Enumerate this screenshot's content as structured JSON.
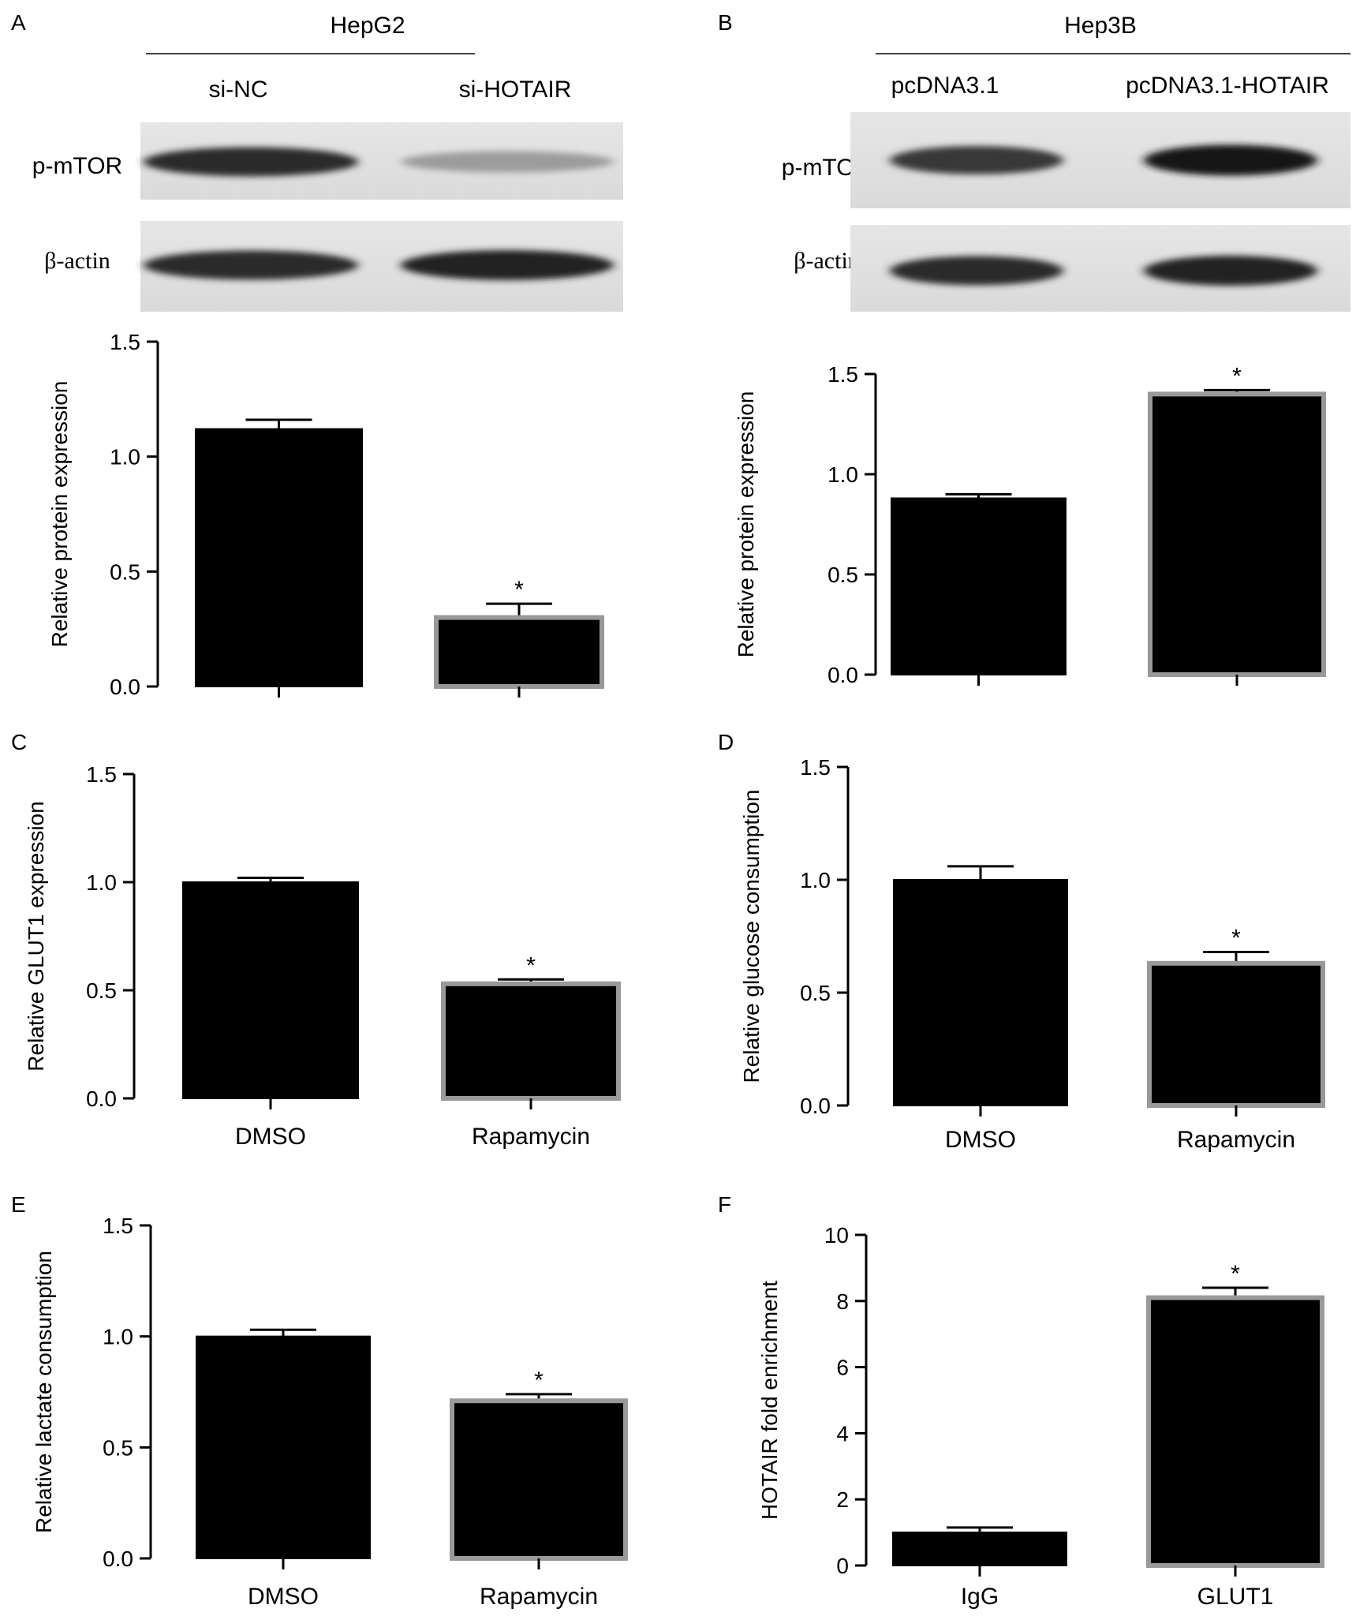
{
  "panels": [
    {
      "letter": "A",
      "blot": {
        "cell_line": "HepG2",
        "lanes": [
          "si-NC",
          "si-HOTAIR"
        ],
        "proteins": [
          "p-mTOR",
          "β-actin"
        ],
        "intensities": {
          "p-mTOR": [
            0.85,
            0.35
          ],
          "β-actin": [
            0.85,
            0.9
          ]
        }
      }
    },
    {
      "letter": "B",
      "blot": {
        "cell_line": "Hep3B",
        "lanes": [
          "pcDNA3.1",
          "pcDNA3.1-HOTAIR"
        ],
        "proteins": [
          "p-mTOR",
          "β-actin"
        ],
        "intensities": {
          "p-mTOR": [
            0.8,
            0.95
          ],
          "β-actin": [
            0.85,
            0.9
          ]
        }
      }
    },
    {
      "letter": "C"
    },
    {
      "letter": "D"
    },
    {
      "letter": "E"
    },
    {
      "letter": "F"
    }
  ],
  "colors": {
    "bar": "#000000",
    "second_bar_border": "#999999",
    "axis": "#000000"
  },
  "chart_data": [
    {
      "panel": "A",
      "type": "bar",
      "categories": [
        "",
        ""
      ],
      "values": [
        1.12,
        0.3
      ],
      "errors": [
        0.04,
        0.06
      ],
      "significance": [
        "",
        "*"
      ],
      "ylabel": "Relative protein expression",
      "ylim": [
        0,
        1.5
      ],
      "yticks": [
        "0.0",
        "0.5",
        "1.0",
        "1.5"
      ],
      "tick_step": 0.5
    },
    {
      "panel": "B",
      "type": "bar",
      "categories": [
        "",
        ""
      ],
      "values": [
        0.88,
        1.4
      ],
      "errors": [
        0.02,
        0.02
      ],
      "significance": [
        "",
        "*"
      ],
      "ylabel": "Relative protein expression",
      "ylim": [
        0,
        1.5
      ],
      "yticks": [
        "0.0",
        "0.5",
        "1.0",
        "1.5"
      ],
      "tick_step": 0.5
    },
    {
      "panel": "C",
      "type": "bar",
      "categories": [
        "DMSO",
        "Rapamycin"
      ],
      "values": [
        1.0,
        0.53
      ],
      "errors": [
        0.02,
        0.02
      ],
      "significance": [
        "",
        "*"
      ],
      "ylabel": "Relative GLUT1 expression",
      "ylim": [
        0,
        1.5
      ],
      "yticks": [
        "0.0",
        "0.5",
        "1.0",
        "1.5"
      ],
      "tick_step": 0.5
    },
    {
      "panel": "D",
      "type": "bar",
      "categories": [
        "DMSO",
        "Rapamycin"
      ],
      "values": [
        1.0,
        0.63
      ],
      "errors": [
        0.06,
        0.05
      ],
      "significance": [
        "",
        "*"
      ],
      "ylabel": "Relative glucose consumption",
      "ylim": [
        0,
        1.5
      ],
      "yticks": [
        "0.0",
        "0.5",
        "1.0",
        "1.5"
      ],
      "tick_step": 0.5
    },
    {
      "panel": "E",
      "type": "bar",
      "categories": [
        "DMSO",
        "Rapamycin"
      ],
      "values": [
        1.0,
        0.71
      ],
      "errors": [
        0.03,
        0.03
      ],
      "significance": [
        "",
        "*"
      ],
      "ylabel": "Relative lactate consumption",
      "ylim": [
        0,
        1.5
      ],
      "yticks": [
        "0.0",
        "0.5",
        "1.0",
        "1.5"
      ],
      "tick_step": 0.5
    },
    {
      "panel": "F",
      "type": "bar",
      "categories": [
        "IgG",
        "GLUT1"
      ],
      "values": [
        1.0,
        8.1
      ],
      "errors": [
        0.15,
        0.3
      ],
      "significance": [
        "",
        "*"
      ],
      "ylabel": "HOTAIR fold enrichment",
      "ylim": [
        0,
        10
      ],
      "yticks": [
        "0",
        "2",
        "4",
        "6",
        "8",
        "10"
      ],
      "tick_step": 2
    }
  ]
}
